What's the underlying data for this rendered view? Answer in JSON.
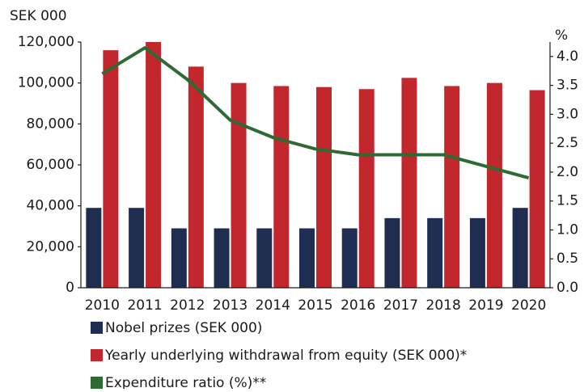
{
  "chart_data": {
    "type": "bar_line",
    "y_label": "SEK 000",
    "y2_label": "%",
    "categories": [
      "2010",
      "2011",
      "2012",
      "2013",
      "2014",
      "2015",
      "2016",
      "2017",
      "2018",
      "2019",
      "2020"
    ],
    "series": [
      {
        "name": "Nobel prizes (SEK 000)",
        "color": "#1f2d50",
        "type": "bar",
        "values": [
          39000,
          39000,
          29000,
          29000,
          29000,
          29000,
          29000,
          34000,
          34000,
          34000,
          39000
        ]
      },
      {
        "name": "Yearly underlying withdrawal from equity (SEK 000)*",
        "color": "#c1272d",
        "type": "bar",
        "values": [
          116000,
          120000,
          108000,
          100000,
          98500,
          98000,
          97000,
          102500,
          98500,
          100000,
          96500
        ]
      },
      {
        "name": "Expenditure ratio (%)**",
        "color": "#2d6a34",
        "type": "line",
        "axis": "y2",
        "values": [
          3.7,
          4.15,
          3.6,
          2.9,
          2.6,
          2.4,
          2.3,
          2.3,
          2.3,
          2.1,
          1.9
        ]
      }
    ],
    "ylim": [
      0,
      120000
    ],
    "yticks": [
      0,
      {
        "value": 20000,
        "label": "20,000"
      },
      {
        "value": 40000,
        "label": "40,000"
      },
      {
        "value": 60000,
        "label": "60,000"
      },
      {
        "value": 80000,
        "label": "80,000"
      },
      {
        "value": 100000,
        "label": "100,000"
      },
      {
        "value": 120000,
        "label": "120,000"
      }
    ],
    "y2lim": [
      0,
      4.25
    ],
    "y2ticks": [
      {
        "value": 0,
        "label": "0.0"
      },
      {
        "value": 0.5,
        "label": "0.5"
      },
      {
        "value": 1,
        "label": "1.0"
      },
      {
        "value": 1.5,
        "label": "1.5"
      },
      {
        "value": 2,
        "label": "2.0"
      },
      {
        "value": 2.5,
        "label": "2.5"
      },
      {
        "value": 3,
        "label": "3.0"
      },
      {
        "value": 3.5,
        "label": "3.5"
      },
      {
        "value": 4,
        "label": "4.0"
      }
    ]
  }
}
